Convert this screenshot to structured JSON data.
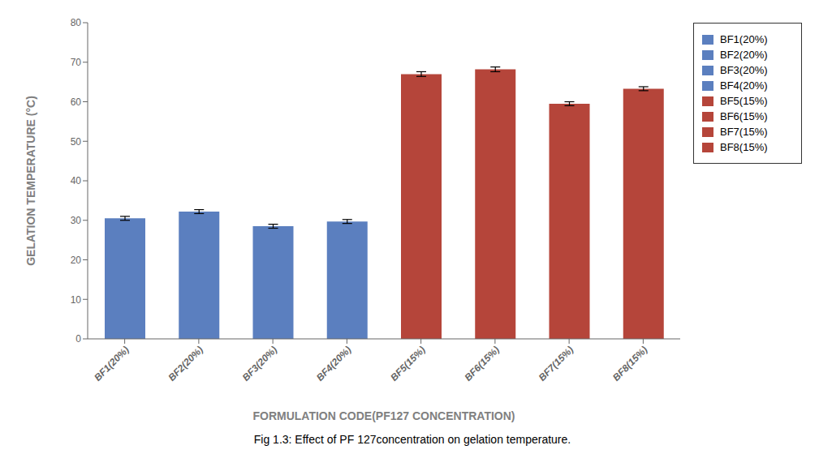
{
  "chart_data": {
    "type": "bar",
    "categories": [
      "BF1(20%)",
      "BF2(20%)",
      "BF3(20%)",
      "BF4(20%)",
      "BF5(15%)",
      "BF6(15%)",
      "BF7(15%)",
      "BF8(15%)"
    ],
    "values": [
      30.5,
      32.2,
      28.5,
      29.7,
      67.0,
      68.2,
      59.5,
      63.3
    ],
    "errors": [
      0.5,
      0.5,
      0.5,
      0.5,
      0.6,
      0.6,
      0.5,
      0.5
    ],
    "colors": [
      "#5b7fbf",
      "#5b7fbf",
      "#5b7fbf",
      "#5b7fbf",
      "#b5453a",
      "#b5453a",
      "#b5453a",
      "#b5453a"
    ],
    "xlabel": "FORMULATION CODE(PF127 CONCENTRATION)",
    "ylabel": "GELATION TEMPERATURE (°C)",
    "ylim": [
      0,
      80
    ],
    "yticks": [
      0,
      10,
      20,
      30,
      40,
      50,
      60,
      70,
      80
    ],
    "grid": false,
    "legend": "right",
    "caption": "Fig 1.3: Effect of PF 127concentration on gelation temperature."
  }
}
